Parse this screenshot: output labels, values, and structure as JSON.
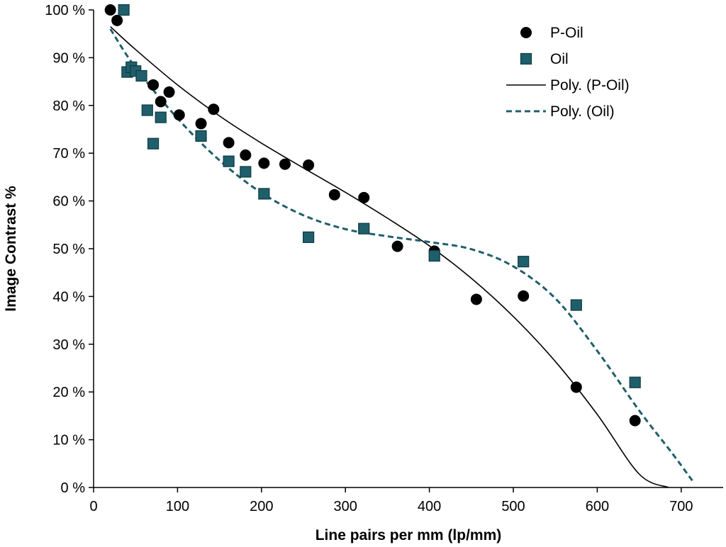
{
  "chart_data": {
    "type": "scatter",
    "title": "",
    "xlabel": "Line pairs per mm (lp/mm)",
    "ylabel": "Image Contrast %",
    "xlim": [
      0,
      750
    ],
    "ylim": [
      0,
      100
    ],
    "x_ticks": [
      0,
      100,
      200,
      300,
      400,
      500,
      600,
      700
    ],
    "x_tick_labels": [
      "0",
      "100",
      "200",
      "300",
      "400",
      "500",
      "600",
      "700"
    ],
    "y_ticks": [
      0,
      10,
      20,
      30,
      40,
      50,
      60,
      70,
      80,
      90,
      100
    ],
    "y_tick_labels": [
      "0 %",
      "10 %",
      "20 %",
      "30 %",
      "40 %",
      "50 %",
      "60 %",
      "70 %",
      "80 %",
      "90 %",
      "100 %"
    ],
    "grid": false,
    "legend_position": "top-right",
    "series": [
      {
        "name": "P-Oil",
        "kind": "scatter",
        "marker": "circle",
        "color": "#000000",
        "points": [
          [
            20,
            100
          ],
          [
            28,
            97.8
          ],
          [
            71,
            84.3
          ],
          [
            80,
            80.8
          ],
          [
            90,
            82.8
          ],
          [
            102,
            78
          ],
          [
            128,
            76.2
          ],
          [
            143,
            79.2
          ],
          [
            161,
            72.2
          ],
          [
            181,
            69.6
          ],
          [
            203,
            67.9
          ],
          [
            228,
            67.7
          ],
          [
            256,
            67.5
          ],
          [
            287,
            61.3
          ],
          [
            322,
            60.7
          ],
          [
            362,
            50.5
          ],
          [
            406,
            49.5
          ],
          [
            456,
            39.4
          ],
          [
            512,
            40.1
          ],
          [
            575,
            21
          ],
          [
            645,
            14
          ]
        ]
      },
      {
        "name": "Oil",
        "kind": "scatter",
        "marker": "square",
        "color": "#1f5f6b",
        "points": [
          [
            36,
            100
          ],
          [
            40,
            87
          ],
          [
            45,
            88
          ],
          [
            50,
            87.2
          ],
          [
            57,
            86.2
          ],
          [
            64,
            79
          ],
          [
            71,
            72
          ],
          [
            80,
            77.5
          ],
          [
            128,
            73.6
          ],
          [
            161,
            68.3
          ],
          [
            181,
            66.1
          ],
          [
            203,
            61.5
          ],
          [
            256,
            52.4
          ],
          [
            322,
            54.2
          ],
          [
            406,
            48.5
          ],
          [
            512,
            47.3
          ],
          [
            575,
            38.2
          ],
          [
            645,
            22
          ]
        ]
      },
      {
        "name": "Poly. (P-Oil)",
        "kind": "trendline",
        "style": "solid",
        "color": "#000000",
        "points": [
          [
            20,
            96.5
          ],
          [
            50,
            91.7
          ],
          [
            100,
            84.3
          ],
          [
            150,
            77.8
          ],
          [
            200,
            72.1
          ],
          [
            250,
            66.9
          ],
          [
            300,
            61.8
          ],
          [
            350,
            56.4
          ],
          [
            400,
            50.6
          ],
          [
            450,
            43.8
          ],
          [
            500,
            35.8
          ],
          [
            550,
            26.4
          ],
          [
            600,
            15.3
          ],
          [
            650,
            2.8
          ],
          [
            685,
            0
          ]
        ]
      },
      {
        "name": "Poly. (Oil)",
        "kind": "trendline",
        "style": "dashed",
        "color": "#1f5f6b",
        "points": [
          [
            20,
            96
          ],
          [
            50,
            87.9
          ],
          [
            100,
            77.3
          ],
          [
            150,
            68.5
          ],
          [
            200,
            61.7
          ],
          [
            250,
            57
          ],
          [
            300,
            54.1
          ],
          [
            350,
            52.6
          ],
          [
            400,
            51.4
          ],
          [
            450,
            49.9
          ],
          [
            500,
            46.3
          ],
          [
            550,
            39.6
          ],
          [
            600,
            28.6
          ],
          [
            650,
            16.1
          ],
          [
            690,
            7
          ],
          [
            715,
            1
          ]
        ]
      }
    ]
  }
}
